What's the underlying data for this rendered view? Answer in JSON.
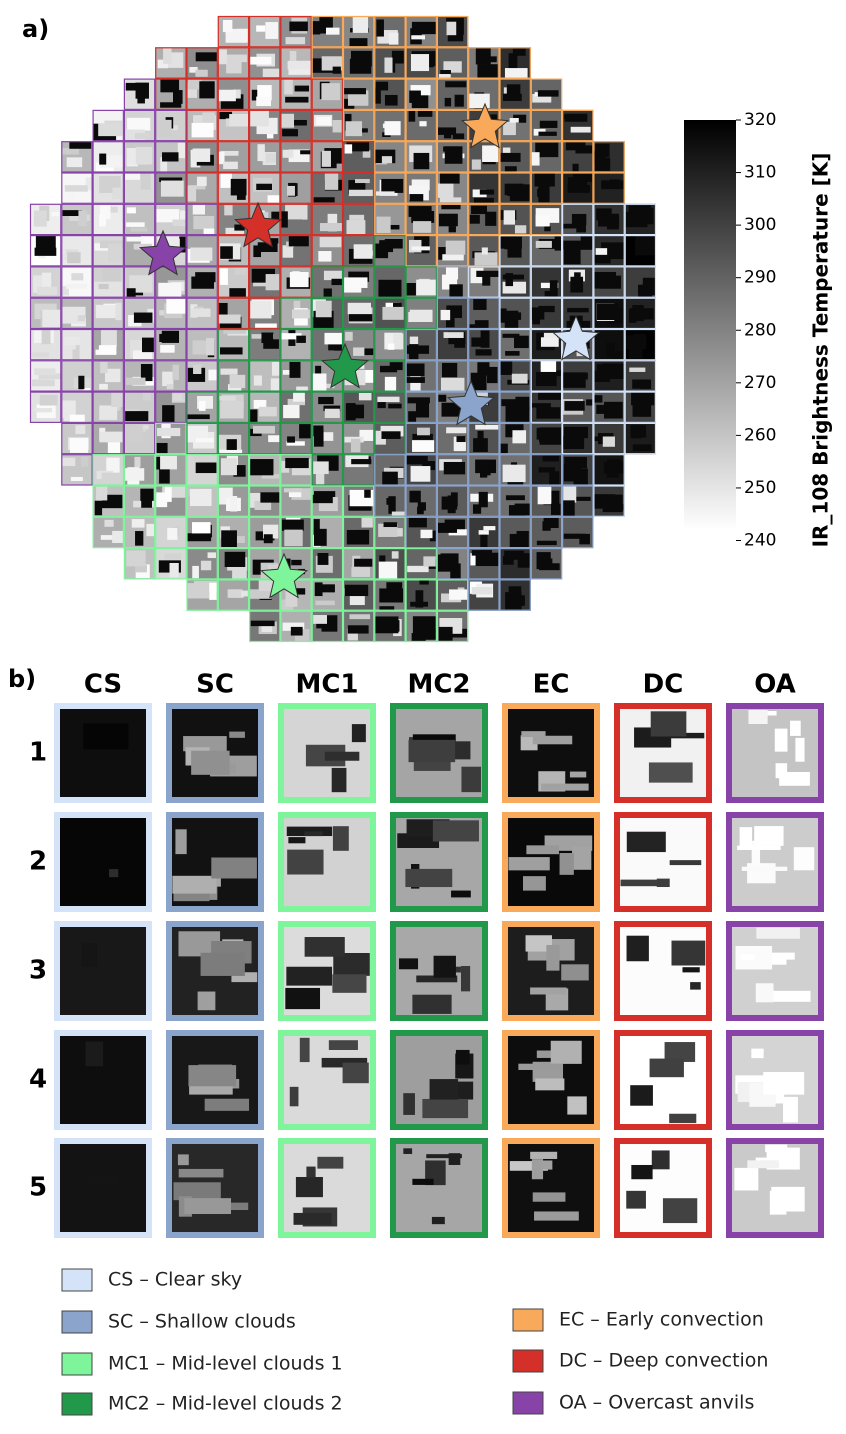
{
  "panel_a": {
    "label": "a)",
    "colorbar": {
      "label": "IR_108 Brightness Temperature [K]",
      "lim": [
        242,
        320
      ],
      "ticks": [
        240,
        250,
        260,
        270,
        280,
        290,
        300,
        310,
        320
      ]
    }
  },
  "panel_b": {
    "label": "b)",
    "columns": [
      "CS",
      "SC",
      "MC1",
      "MC2",
      "EC",
      "DC",
      "OA"
    ],
    "rows": [
      "1",
      "2",
      "3",
      "4",
      "5"
    ]
  },
  "classes": [
    {
      "label": "CS – Clear sky",
      "color": "#d4e3f8"
    },
    {
      "label": "SC – Shallow clouds",
      "color": "#8aa4cc"
    },
    {
      "label": "MC1 – Mid-level clouds 1",
      "color": "#7ef59b"
    },
    {
      "label": "MC2 – Mid-level clouds 2",
      "color": "#22984a"
    },
    {
      "label": "EC – Early convection",
      "color": "#f9a95a"
    },
    {
      "label": "DC – Deep convection",
      "color": "#d42f28"
    },
    {
      "label": "OA – Overcast anvils",
      "color": "#8743a8"
    }
  ]
}
